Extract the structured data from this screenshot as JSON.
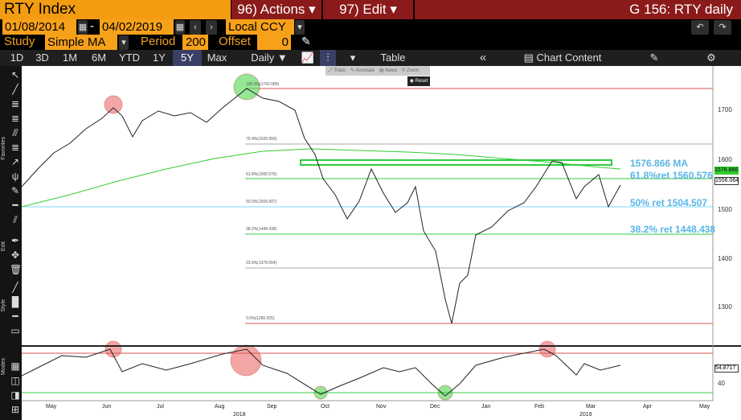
{
  "header": {
    "ticker": "RTY Index",
    "actions_label": "96) Actions",
    "edit_label": "97) Edit",
    "title": "G 156: RTY daily"
  },
  "dates": {
    "start": "01/08/2014",
    "separator": "-",
    "end": "04/02/2019",
    "currency": "Local CCY"
  },
  "study": {
    "label": "Study",
    "value": "Simple MA",
    "period_label": "Period",
    "period": "200",
    "offset_label": "Offset",
    "offset": "0"
  },
  "ranges": [
    "1D",
    "3D",
    "1M",
    "6M",
    "YTD",
    "1Y",
    "5Y",
    "Max"
  ],
  "selected_range": "5Y",
  "toolbar": {
    "frequency": "Daily",
    "table": "Table",
    "chart_content": "Chart Content"
  },
  "chart_tools": {
    "track": "Track",
    "annotate": "Annotate",
    "news": "News",
    "zoom": "Zoom",
    "reset": "Reset"
  },
  "side_tabs": {
    "favorites": "Favorites",
    "edit": "Edit",
    "style": "Style",
    "modes": "Modes"
  },
  "axis": {
    "y_ticks": [
      "1700",
      "1600",
      "1500",
      "1400",
      "1300"
    ],
    "months": [
      "May",
      "Jun",
      "Jul",
      "Aug",
      "Sep",
      "Oct",
      "Nov",
      "Dec",
      "Jan",
      "Feb",
      "Mar",
      "Apr",
      "May"
    ],
    "years": [
      "2018",
      "2019"
    ],
    "last_price": "1556.064",
    "ma_value_tag": "1576.866",
    "osc_value": "54.8717",
    "osc_tick": "40"
  },
  "fib_levels": [
    {
      "label": "100.0%(1742.089)"
    },
    {
      "label": "76.4%(1629.950)"
    },
    {
      "label": "61.8%(1560.576)"
    },
    {
      "label": "50.0%(1504.507)"
    },
    {
      "label": "38.2%(1448.438)"
    },
    {
      "label": "23.6%(1379.064)"
    },
    {
      "label": "0.0%(1266.925)"
    }
  ],
  "annotations": {
    "ma": "1576.866  MA",
    "ret618": "61.8%ret 1560.576",
    "ret50": "50% ret 1504.507",
    "ret382": "38.2% ret 1448.438"
  },
  "colors": {
    "price": "#222222",
    "ma": "#33cc33",
    "fib_red": "#d9534f",
    "fib_green": "#2ecc40",
    "fib_blue": "#7fd6ff",
    "label_blue": "#59b5e6"
  }
}
